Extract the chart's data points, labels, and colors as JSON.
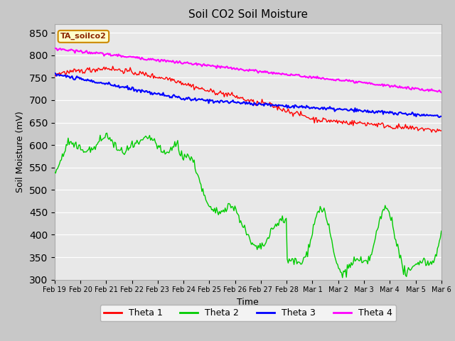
{
  "title": "Soil CO2 Soil Moisture",
  "xlabel": "Time",
  "ylabel": "Soil Moisture (mV)",
  "ylim": [
    300,
    870
  ],
  "yticks": [
    300,
    350,
    400,
    450,
    500,
    550,
    600,
    650,
    700,
    750,
    800,
    850
  ],
  "fig_facecolor": "#c8c8c8",
  "plot_bg_color": "#e8e8e8",
  "legend_label": "TA_soilco2",
  "series_colors": {
    "Theta 1": "#ff0000",
    "Theta 2": "#00cc00",
    "Theta 3": "#0000ff",
    "Theta 4": "#ff00ff"
  },
  "x_tick_labels": [
    "Feb 19",
    "Feb 20",
    "Feb 21",
    "Feb 22",
    "Feb 23",
    "Feb 24",
    "Feb 25",
    "Feb 26",
    "Feb 27",
    "Feb 28",
    "Mar 1",
    "Mar 2",
    "Mar 3",
    "Mar 4",
    "Mar 5",
    "Mar 6"
  ]
}
